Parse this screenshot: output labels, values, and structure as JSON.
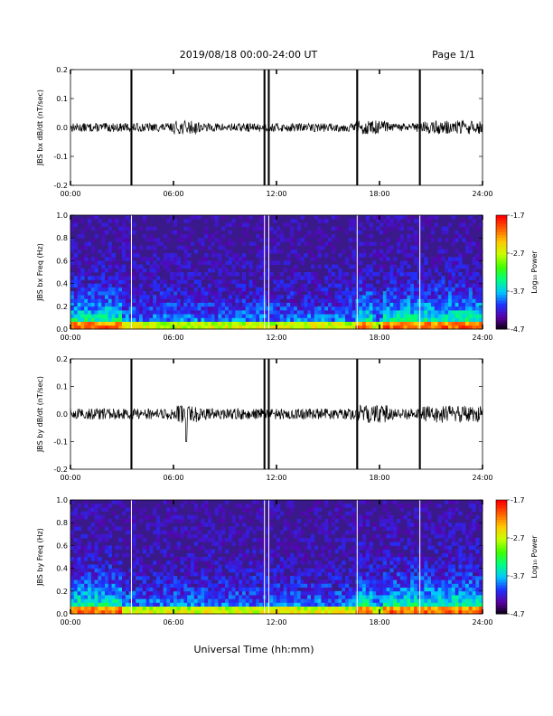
{
  "header": {
    "title": "2019/08/18  00:00-24:00 UT",
    "page": "Page 1/1"
  },
  "x_axis": {
    "label": "Universal Time (hh:mm)",
    "ticks": [
      "00:00",
      "06:00",
      "12:00",
      "18:00",
      "24:00"
    ]
  },
  "colorbar": {
    "label": "Log₁₀ Power",
    "ticks": [
      "-1.7",
      "-2.7",
      "-3.7",
      "-4.7"
    ],
    "range": [
      -4.7,
      -1.7
    ]
  },
  "colors": {
    "trace": "#000000",
    "spectrogram_background": "#3a1a8a",
    "colormap": [
      "#000000",
      "#5a00a0",
      "#2030ff",
      "#00c8ff",
      "#00ff80",
      "#40ff00",
      "#c8ff00",
      "#ffc800",
      "#ff6000",
      "#ff0000"
    ]
  },
  "chart_data": [
    {
      "type": "line",
      "ylabel": "JBS bx dB/dt (nT/sec)",
      "xlim": [
        0,
        24
      ],
      "ylim": [
        -0.2,
        0.2
      ],
      "yticks": [
        "-0.2",
        "-0.1",
        "0.0",
        "0.1",
        "0.2"
      ],
      "baseline": 0.0,
      "noise_amplitude": 0.015,
      "spikes_hours": [
        3.55,
        11.3,
        11.55,
        16.7,
        20.35
      ],
      "annotations": "vertical spikes reaching full scale at data gaps"
    },
    {
      "type": "heatmap",
      "ylabel": "JBS bx Freq (Hz)",
      "xlim": [
        0,
        24
      ],
      "ylim": [
        0.0,
        1.0
      ],
      "yticks": [
        "0.0",
        "0.2",
        "0.4",
        "0.6",
        "0.8",
        "1.0"
      ],
      "value_range": [
        -4.7,
        -1.7
      ],
      "gap_hours": [
        3.55,
        11.3,
        11.55,
        16.7,
        20.35
      ]
    },
    {
      "type": "line",
      "ylabel": "JBS by dB/dt (nT/sec)",
      "xlim": [
        0,
        24
      ],
      "ylim": [
        -0.2,
        0.2
      ],
      "yticks": [
        "-0.2",
        "-0.1",
        "0.0",
        "0.1",
        "0.2"
      ],
      "baseline": 0.0,
      "noise_amplitude": 0.02,
      "spikes_hours": [
        3.55,
        11.3,
        11.55,
        16.7,
        20.35
      ],
      "dip": {
        "hour": 6.75,
        "value": -0.1
      }
    },
    {
      "type": "heatmap",
      "ylabel": "JBS by Freq (Hz)",
      "xlim": [
        0,
        24
      ],
      "ylim": [
        0.0,
        1.0
      ],
      "yticks": [
        "0.0",
        "0.2",
        "0.4",
        "0.6",
        "0.8",
        "1.0"
      ],
      "value_range": [
        -4.7,
        -1.7
      ],
      "gap_hours": [
        3.55,
        11.3,
        11.55,
        16.7,
        20.35
      ]
    }
  ]
}
